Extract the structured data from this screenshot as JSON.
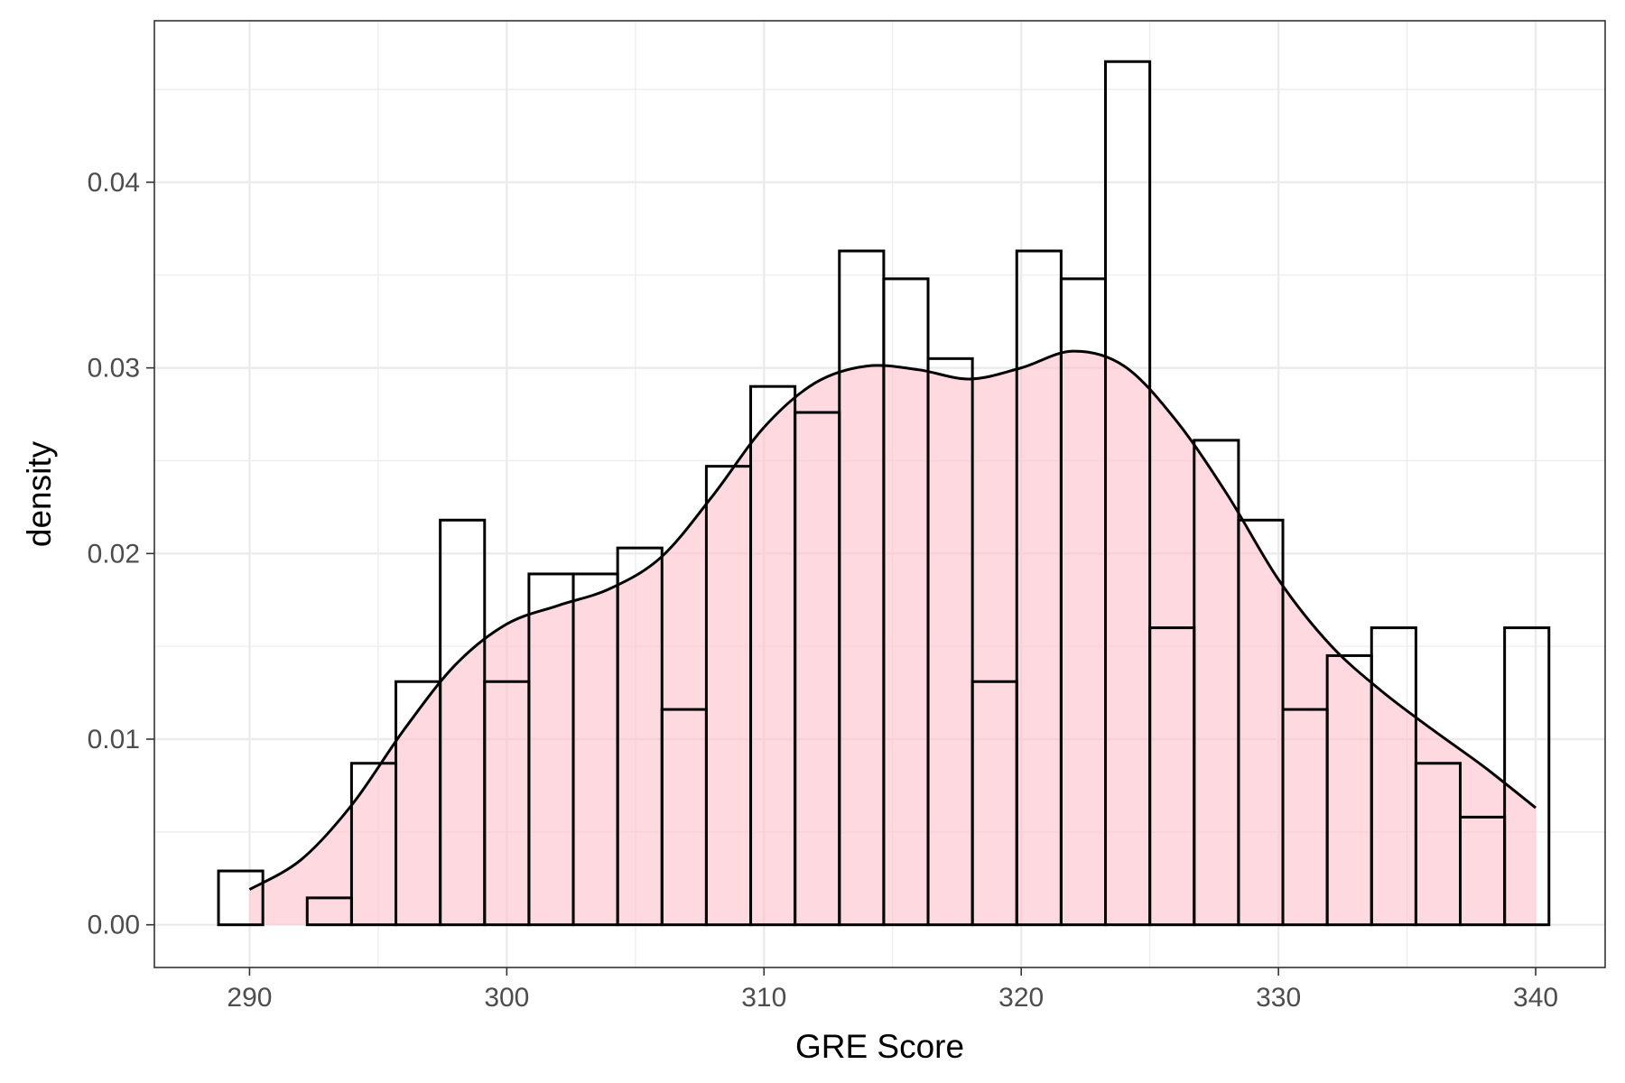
{
  "chart_data": {
    "type": "histogram",
    "title": "",
    "xlabel": "GRE Score",
    "ylabel": "density",
    "xlim": [
      286.3,
      342.7
    ],
    "ylim": [
      -0.0023,
      0.0487
    ],
    "x_ticks": [
      290,
      300,
      310,
      320,
      330,
      340
    ],
    "x_tick_labels": [
      "290",
      "300",
      "310",
      "320",
      "330",
      "340"
    ],
    "y_ticks": [
      0,
      0.01,
      0.02,
      0.03,
      0.04
    ],
    "y_tick_labels": [
      "0.00",
      "0.01",
      "0.02",
      "0.03",
      "0.04"
    ],
    "grid": true,
    "legend": "none",
    "colors": {
      "density_fill": "#ffc0cb",
      "outline": "#000000",
      "grid": "#ebebeb"
    },
    "histogram": {
      "bin_start": 288.793,
      "bin_width": 1.7241,
      "values": [
        0.0029,
        0,
        0.00145,
        0.0087,
        0.0131,
        0.0218,
        0.0131,
        0.0189,
        0.0189,
        0.0203,
        0.0116,
        0.0247,
        0.029,
        0.0276,
        0.0363,
        0.0348,
        0.0305,
        0.0131,
        0.0363,
        0.0348,
        0.0465,
        0.016,
        0.0261,
        0.0218,
        0.0116,
        0.0145,
        0.016,
        0.0087,
        0.0058,
        0.016
      ]
    },
    "density": {
      "x": [
        290,
        292,
        294,
        296,
        298,
        300,
        302,
        304,
        306,
        308,
        310,
        312,
        314,
        316,
        318,
        320,
        322,
        324,
        326,
        328,
        330,
        332,
        334,
        336,
        338,
        340
      ],
      "y": [
        0.0019,
        0.0035,
        0.0065,
        0.0105,
        0.014,
        0.0162,
        0.0172,
        0.0181,
        0.0198,
        0.0231,
        0.0268,
        0.0292,
        0.0301,
        0.0299,
        0.0294,
        0.03,
        0.0309,
        0.0301,
        0.0272,
        0.0232,
        0.0186,
        0.0151,
        0.0126,
        0.0105,
        0.0085,
        0.0063
      ]
    }
  }
}
